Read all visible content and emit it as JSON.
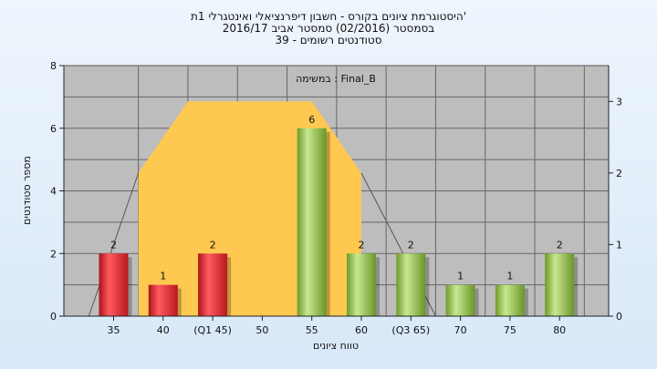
{
  "chart_data": {
    "type": "bar",
    "title": [
      "היסטוגרמת ציונים בקורס - חשבון דיפרנציאלי ואינטגרלי 1ת'",
      "בסמסטר  (02/2016)  סמסטר אביב 2016/17",
      "סטודנטים רשומים - 39"
    ],
    "plot_label": "במשימה : Final_B",
    "xlabel": "טווח ציונים",
    "ylabel": "מספר סטודנטים",
    "categories": [
      "35",
      "40",
      "(Q1 45)",
      "50",
      "55",
      "60",
      "(Q3 65)",
      "70",
      "75",
      "80"
    ],
    "values": [
      2,
      1,
      2,
      0,
      6,
      2,
      2,
      1,
      1,
      2
    ],
    "value_labels": [
      "2",
      "1",
      "2",
      "",
      "6",
      "2",
      "2",
      "1",
      "1",
      "2"
    ],
    "bar_colors": [
      "red",
      "red",
      "red",
      "red",
      "green",
      "green",
      "green",
      "green",
      "green",
      "green"
    ],
    "ylim": [
      0,
      8
    ],
    "yticks": [
      "0",
      "2",
      "4",
      "6",
      "8"
    ],
    "y2lim": [
      0,
      3.5
    ],
    "y2ticks": [
      "0",
      "1",
      "2",
      "3"
    ],
    "distribution_area": {
      "color": "#ffc850",
      "points": [
        [
          0.5,
          0
        ],
        [
          0.5,
          2.0
        ],
        [
          1.5,
          3.0
        ],
        [
          4.0,
          3.0
        ],
        [
          5.0,
          2.0
        ],
        [
          5.0,
          0
        ]
      ]
    },
    "distribution_tails": [
      [
        [
          -0.5,
          0
        ],
        [
          0.5,
          2.0
        ]
      ],
      [
        [
          5.0,
          2.0
        ],
        [
          6.5,
          0
        ]
      ]
    ],
    "grid": true,
    "colors": {
      "red": "#e0262e",
      "green": "#8cc040",
      "plot_bg": "#bdbdbd",
      "grid": "#666666"
    }
  }
}
